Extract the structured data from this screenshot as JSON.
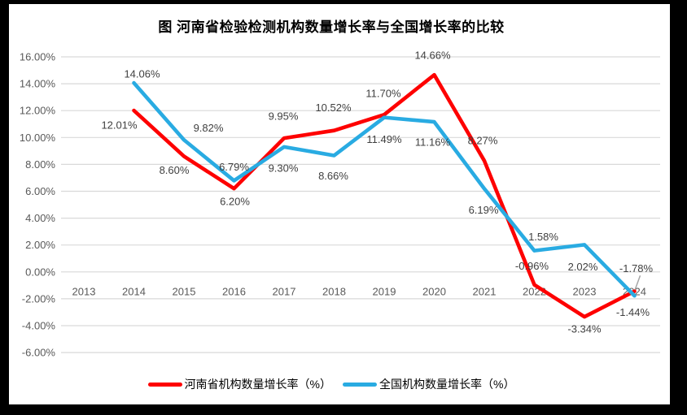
{
  "page": {
    "background": "#ffffff",
    "frame_color": "#000000"
  },
  "chart_data": {
    "type": "line",
    "title": "图  河南省检验检测机构数量增长率与全国增长率的比较",
    "categories": [
      "2013",
      "2014",
      "2015",
      "2016",
      "2017",
      "2018",
      "2019",
      "2020",
      "2021",
      "2022",
      "2023",
      "2024"
    ],
    "series": [
      {
        "name": "河南省机构数量增长率（%）",
        "color": "#fe0000",
        "values": [
          null,
          12.01,
          8.6,
          6.2,
          9.95,
          10.52,
          11.7,
          14.66,
          8.27,
          -0.96,
          -3.34,
          -1.44
        ],
        "labels": [
          null,
          "12.01%",
          "8.60%",
          "6.20%",
          "9.95%",
          "10.52%",
          "11.70%",
          "14.66%",
          "8.27%",
          "-0.96%",
          "-3.34%",
          "-1.44%"
        ],
        "label_offsets": [
          null,
          [
            -18,
            18
          ],
          [
            -12,
            17
          ],
          [
            1,
            16
          ],
          [
            -1,
            -27
          ],
          [
            -1,
            -28
          ],
          [
            -1,
            -26
          ],
          [
            -2,
            -24
          ],
          [
            -2,
            -25
          ],
          [
            -3,
            -23
          ],
          [
            0,
            15
          ],
          [
            -2,
            26
          ]
        ]
      },
      {
        "name": "全国机构数量增长率（%）",
        "color": "#29abe2",
        "values": [
          null,
          14.06,
          9.82,
          6.79,
          9.3,
          8.66,
          11.49,
          11.16,
          6.19,
          1.58,
          2.02,
          -1.78
        ],
        "labels": [
          null,
          "14.06%",
          "9.82%",
          "6.79%",
          "9.30%",
          "8.66%",
          "11.49%",
          "11.16%",
          "6.19%",
          "1.58%",
          "2.02%",
          "-1.78%"
        ],
        "label_offsets": [
          null,
          [
            10,
            -11
          ],
          [
            30,
            -15
          ],
          [
            0,
            -17
          ],
          [
            -1,
            26
          ],
          [
            -1,
            25
          ],
          [
            0,
            27
          ],
          [
            -2,
            25
          ],
          [
            -1,
            26
          ],
          [
            11,
            -17
          ],
          [
            -2,
            27
          ],
          [
            2,
            -34
          ]
        ]
      }
    ],
    "ylim": [
      -6,
      16
    ],
    "ytick_values": [
      16,
      14,
      12,
      10,
      8,
      6,
      4,
      2,
      0,
      -2,
      -4,
      -6
    ],
    "ytick_labels": [
      "16.00%",
      "14.00%",
      "12.00%",
      "10.00%",
      "8.00%",
      "6.00%",
      "4.00%",
      "2.00%",
      "0.00%",
      "-2.00%",
      "-4.00%",
      "-6.00%"
    ],
    "grid": "horizontal",
    "gridline_color": "#d9d9d9",
    "axis_label_color": "#595959",
    "data_label_color": "#404040",
    "leader_line": {
      "series_index": 1,
      "point_index": 11,
      "color": "#a6a6a6"
    },
    "legend_position": "bottom"
  }
}
